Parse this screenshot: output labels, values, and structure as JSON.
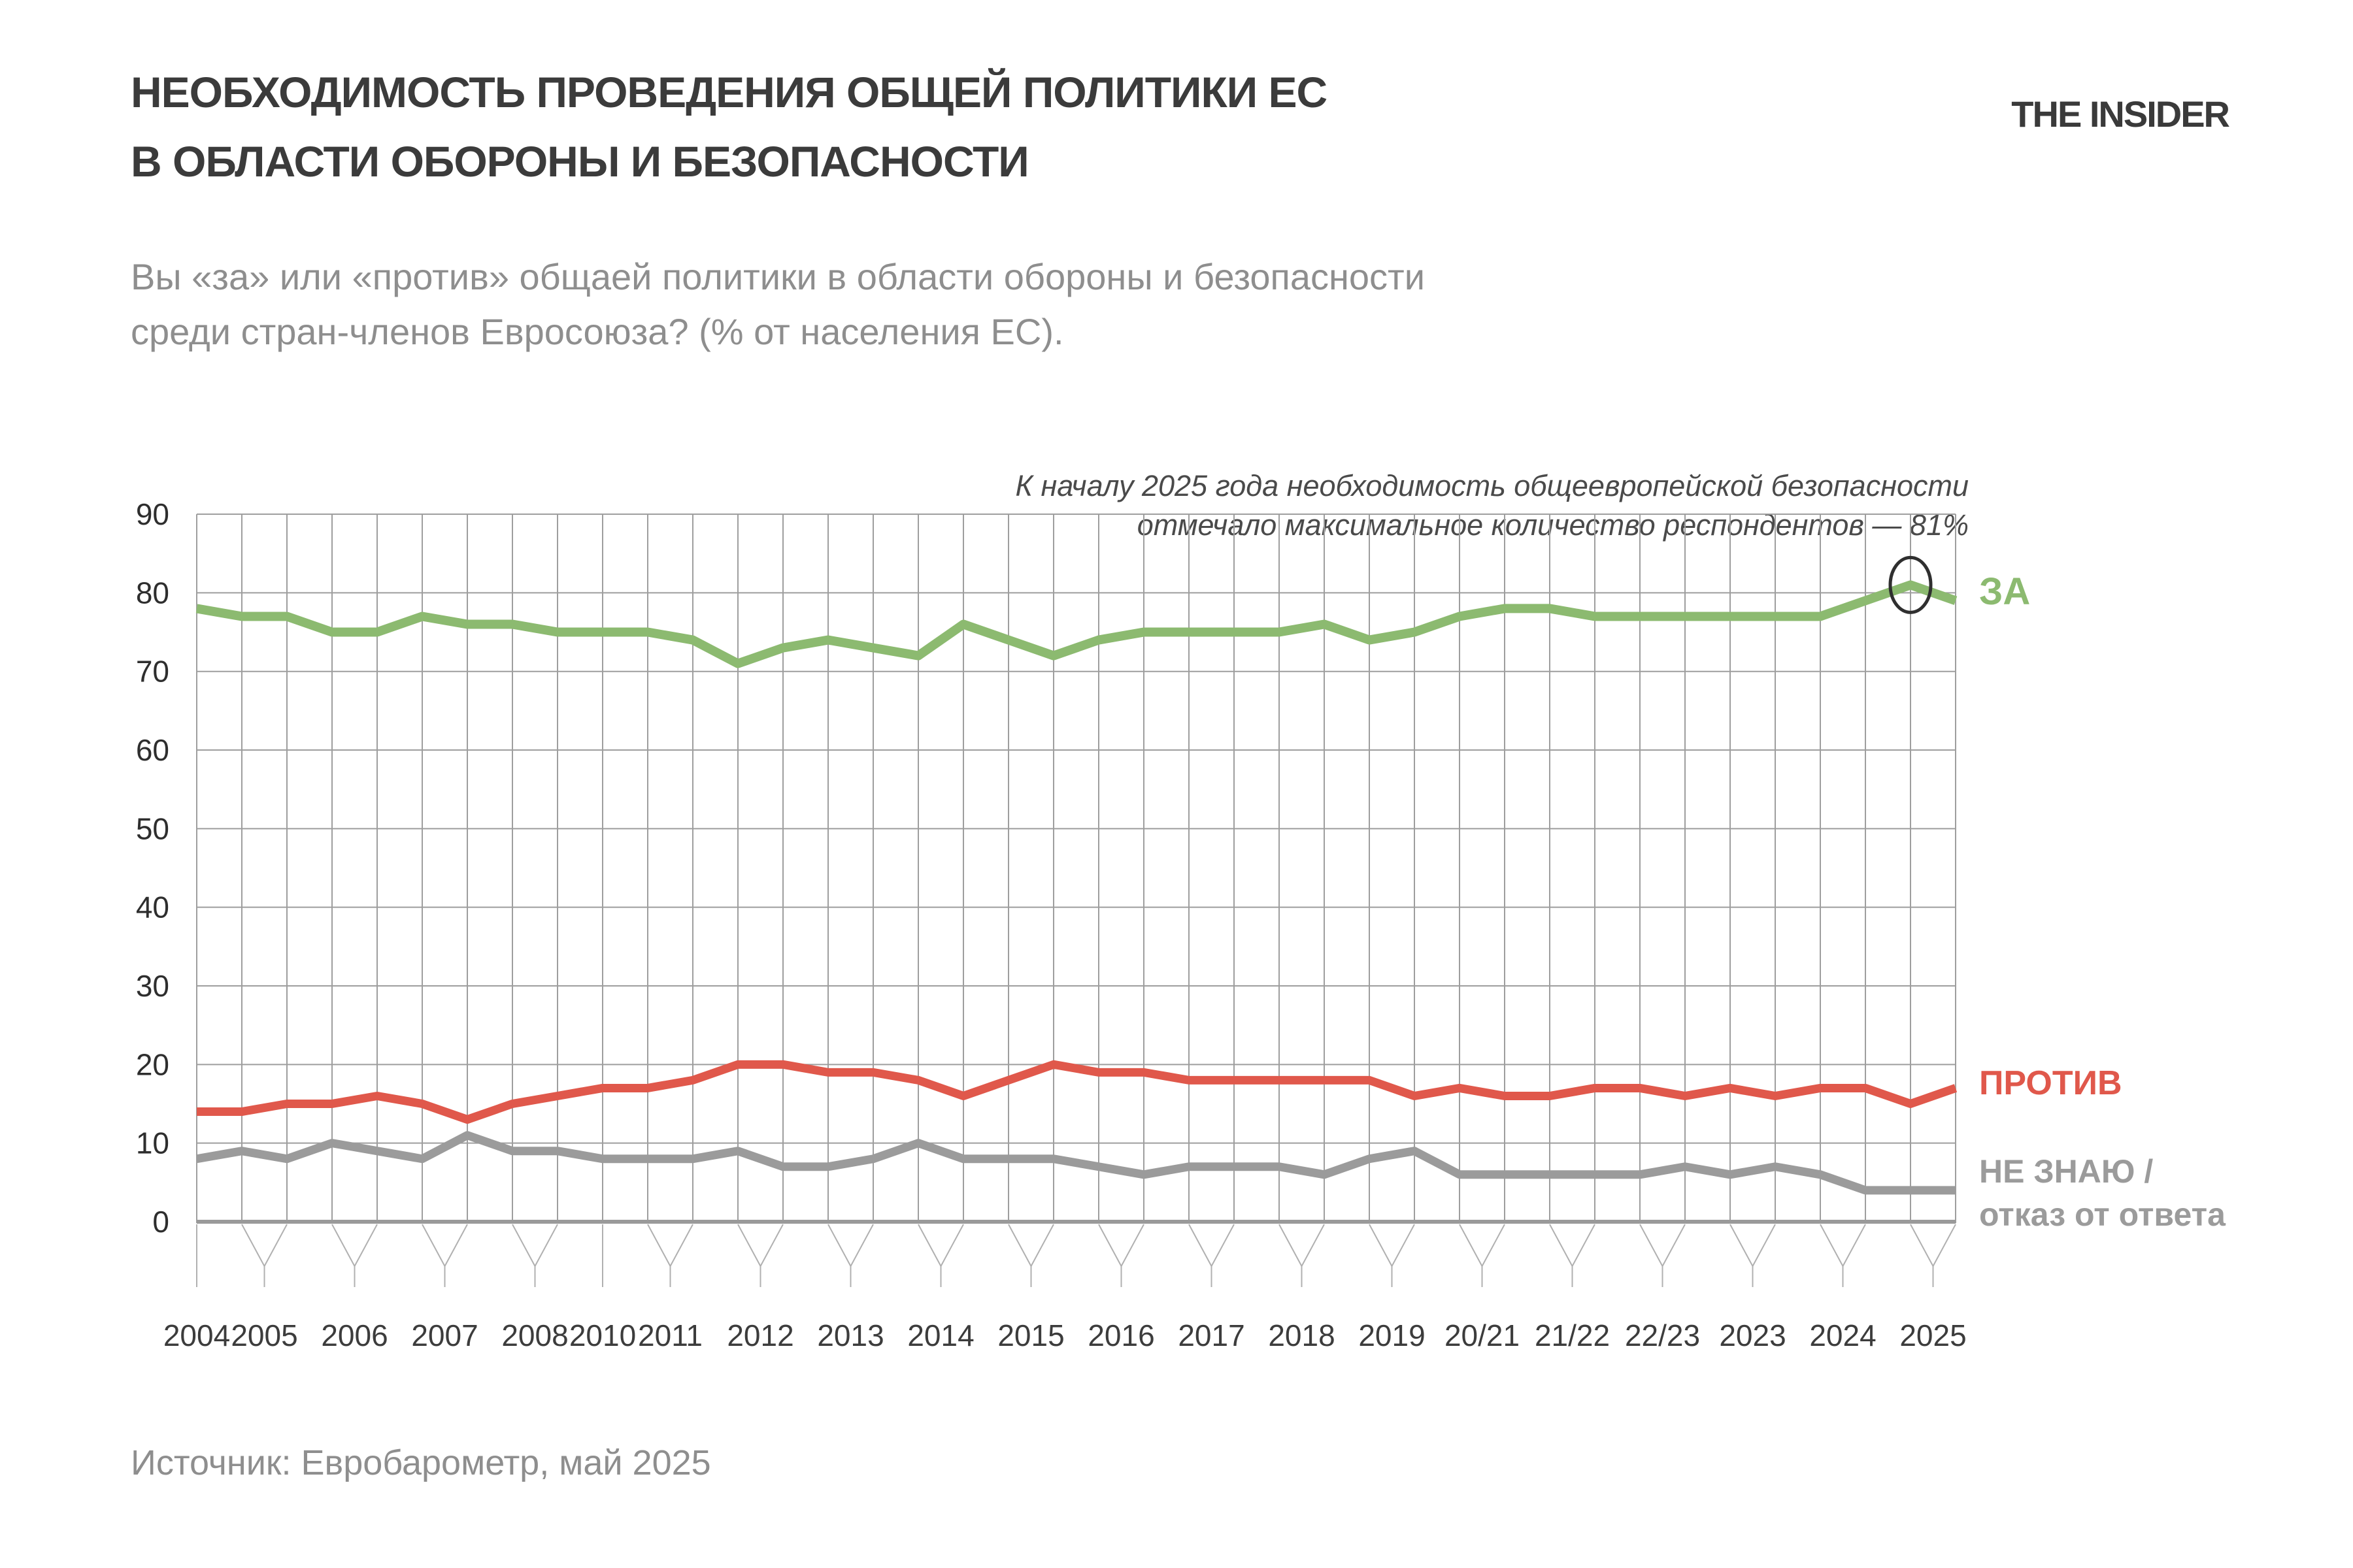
{
  "page": {
    "title_line1": "НЕОБХОДИМОСТЬ ПРОВЕДЕНИЯ ОБЩЕЙ ПОЛИТИКИ ЕС",
    "title_line2": "В ОБЛАСТИ ОБОРОНЫ И БЕЗОПАСНОСТИ",
    "logo": "THE INSIDER",
    "subtitle_line1": "Вы «за» или «против» общаей политики в области обороны и безопасности",
    "subtitle_line2": "среди стран-членов Евросоюза? (% от населения ЕС).",
    "source": "Источник: Евробарометр, май 2025"
  },
  "annotation": {
    "line1": "К началу 2025 года необходимость общеевропейской безопасности",
    "line2": "отмечало максимальное количество респондентов — 81%"
  },
  "legend": {
    "za": "ЗА",
    "protiv": "ПРОТИВ",
    "dk_line1": "НЕ ЗНАЮ /",
    "dk_line2": "отказ от ответа"
  },
  "colors": {
    "za": "#8CBA70",
    "protiv": "#E0584B",
    "dk": "#9B9B9B",
    "grid": "#9e9e9e",
    "axis": "#9a9a9a",
    "tick": "#b0b0b0",
    "axis_text": "#2e2e2e",
    "highlight_ring": "#2f2f2f"
  },
  "chart_data": {
    "type": "line",
    "title": "Необходимость проведения общей политики ЕС в области обороны и безопасности",
    "ylabel": "% от населения ЕС",
    "ylim": [
      0,
      90
    ],
    "ytick_step": 10,
    "grid": true,
    "legend_position": "right",
    "x_tick_groups": [
      {
        "label": "2004",
        "points": [
          0
        ]
      },
      {
        "label": "2005",
        "points": [
          1,
          2
        ]
      },
      {
        "label": "2006",
        "points": [
          3,
          4
        ]
      },
      {
        "label": "2007",
        "points": [
          5,
          6
        ]
      },
      {
        "label": "2008",
        "points": [
          7,
          8
        ]
      },
      {
        "label": "2010",
        "points": [
          9
        ]
      },
      {
        "label": "2011",
        "points": [
          10,
          11
        ]
      },
      {
        "label": "2012",
        "points": [
          12,
          13
        ]
      },
      {
        "label": "2013",
        "points": [
          14,
          15
        ]
      },
      {
        "label": "2014",
        "points": [
          16,
          17
        ]
      },
      {
        "label": "2015",
        "points": [
          18,
          19
        ]
      },
      {
        "label": "2016",
        "points": [
          20,
          21
        ]
      },
      {
        "label": "2017",
        "points": [
          22,
          23
        ]
      },
      {
        "label": "2018",
        "points": [
          24,
          25
        ]
      },
      {
        "label": "2019",
        "points": [
          26,
          27
        ]
      },
      {
        "label": "20/21",
        "points": [
          28,
          29
        ]
      },
      {
        "label": "21/22",
        "points": [
          30,
          31
        ]
      },
      {
        "label": "22/23",
        "points": [
          32,
          33
        ]
      },
      {
        "label": "2023",
        "points": [
          34,
          35
        ]
      },
      {
        "label": "2024",
        "points": [
          36,
          37
        ]
      },
      {
        "label": "2025",
        "points": [
          38,
          39
        ]
      }
    ],
    "series": [
      {
        "name": "ЗА",
        "color": "#8CBA70",
        "width": 14,
        "values": [
          78,
          77,
          77,
          75,
          75,
          77,
          76,
          76,
          75,
          75,
          75,
          74,
          71,
          73,
          74,
          73,
          72,
          76,
          74,
          72,
          74,
          75,
          75,
          75,
          75,
          76,
          74,
          75,
          77,
          78,
          78,
          77,
          77,
          77,
          77,
          77,
          77,
          79,
          81,
          79
        ]
      },
      {
        "name": "ПРОТИВ",
        "color": "#E0584B",
        "width": 13,
        "values": [
          14,
          14,
          15,
          15,
          16,
          15,
          13,
          15,
          16,
          17,
          17,
          18,
          20,
          20,
          19,
          19,
          18,
          16,
          18,
          20,
          19,
          19,
          18,
          18,
          18,
          18,
          18,
          16,
          17,
          16,
          16,
          17,
          17,
          16,
          17,
          16,
          17,
          17,
          15,
          17
        ]
      },
      {
        "name": "НЕ ЗНАЮ / отказ от ответа",
        "color": "#9B9B9B",
        "width": 13,
        "values": [
          8,
          9,
          8,
          10,
          9,
          8,
          11,
          9,
          9,
          8,
          8,
          8,
          9,
          7,
          7,
          8,
          10,
          8,
          8,
          8,
          7,
          6,
          7,
          7,
          7,
          6,
          8,
          9,
          6,
          6,
          6,
          6,
          6,
          7,
          6,
          7,
          6,
          4,
          4,
          4
        ]
      }
    ],
    "highlight_point": {
      "series": "ЗА",
      "index": 38,
      "value": 81
    }
  }
}
